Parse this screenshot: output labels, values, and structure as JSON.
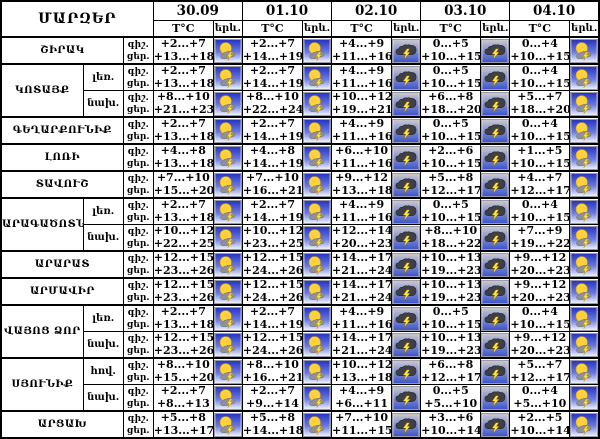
{
  "chart_data": {
    "type": "table",
    "title": "ՄԱՐԶԵՐ",
    "dates": [
      "30.09",
      "01.10",
      "02.10",
      "03.10",
      "04.10"
    ],
    "sub_headers": {
      "temperature": "T°C",
      "phenomena": "երև."
    },
    "period_labels": {
      "night": "գիշ.",
      "day": "ցեր."
    },
    "icon_legend": {
      "sun-cloud-lightning": "sun with cloud and lightning on blue sky",
      "thundercloud": "dark storm cloud with lightning"
    },
    "regions": [
      {
        "name": "ՇԻՐԱԿ",
        "zones": [
          {
            "label": "",
            "night": [
              "+2...+7",
              "+2...+7",
              "+4...+9",
              "0...+5",
              "0...+4"
            ],
            "day": [
              "+13...+18",
              "+14...+19",
              "+11...+16",
              "+10...+15",
              "+10...+15"
            ],
            "icons": [
              "sun-cloud-lightning",
              "sun-cloud-lightning",
              "thundercloud",
              "thundercloud",
              "sun-cloud-lightning"
            ]
          }
        ]
      },
      {
        "name": "ԿՈՏԱՅՔ",
        "zones": [
          {
            "label": "լեռ.",
            "night": [
              "+2...+7",
              "+2...+7",
              "+4...+9",
              "0...+5",
              "0...+4"
            ],
            "day": [
              "+13...+18",
              "+14...+19",
              "+11...+16",
              "+10...+15",
              "+10...+15"
            ],
            "icons": [
              "sun-cloud-lightning",
              "sun-cloud-lightning",
              "thundercloud",
              "thundercloud",
              "sun-cloud-lightning"
            ]
          },
          {
            "label": "նախ.",
            "night": [
              "+8...+10",
              "+8...+10",
              "+10...+12",
              "+6...+8",
              "+5...+7"
            ],
            "day": [
              "+21...+23",
              "+22...+24",
              "+19...+21",
              "+18...+20",
              "+18...+20"
            ],
            "icons": [
              "sun-cloud-lightning",
              "sun-cloud-lightning",
              "thundercloud",
              "thundercloud",
              "sun-cloud-lightning"
            ]
          }
        ]
      },
      {
        "name": "ԳԵՂԱՐՔՈՒՆԻՔ",
        "zones": [
          {
            "label": "",
            "night": [
              "+2...+7",
              "+2...+7",
              "+4...+9",
              "0...+5",
              "0...+4"
            ],
            "day": [
              "+13...+18",
              "+14...+19",
              "+11...+16",
              "+10...+15",
              "+10...+15"
            ],
            "icons": [
              "sun-cloud-lightning",
              "sun-cloud-lightning",
              "thundercloud",
              "thundercloud",
              "sun-cloud-lightning"
            ]
          }
        ]
      },
      {
        "name": "ԼՈՌԻ",
        "zones": [
          {
            "label": "",
            "night": [
              "+4...+8",
              "+4...+8",
              "+6...+10",
              "+2...+6",
              "+1...+5"
            ],
            "day": [
              "+13...+18",
              "+14...+19",
              "+11...+16",
              "+10...+15",
              "+10...+15"
            ],
            "icons": [
              "sun-cloud-lightning",
              "sun-cloud-lightning",
              "thundercloud",
              "thundercloud",
              "sun-cloud-lightning"
            ]
          }
        ]
      },
      {
        "name": "ՏԱՎՈՒՇ",
        "zones": [
          {
            "label": "",
            "night": [
              "+7...+10",
              "+7...+10",
              "+9...+12",
              "+5...+8",
              "+4...+7"
            ],
            "day": [
              "+15...+20",
              "+16...+21",
              "+13...+18",
              "+12...+17",
              "+12...+17"
            ],
            "icons": [
              "sun-cloud-lightning",
              "sun-cloud-lightning",
              "thundercloud",
              "thundercloud",
              "sun-cloud-lightning"
            ]
          }
        ]
      },
      {
        "name": "ԱՐԱԳԱԾՈՏՆ",
        "zones": [
          {
            "label": "լեռ.",
            "night": [
              "+2...+7",
              "+2...+7",
              "+4...+9",
              "0...+5",
              "0...+4"
            ],
            "day": [
              "+13...+18",
              "+14...+19",
              "+11...+16",
              "+10...+15",
              "+10...+15"
            ],
            "icons": [
              "sun-cloud-lightning",
              "sun-cloud-lightning",
              "thundercloud",
              "thundercloud",
              "sun-cloud-lightning"
            ]
          },
          {
            "label": "նախ.",
            "night": [
              "+10...+12",
              "+10...+12",
              "+12...+14",
              "+8...+10",
              "+7...+9"
            ],
            "day": [
              "+22...+25",
              "+23...+25",
              "+20...+23",
              "+18...+22",
              "+19...+22"
            ],
            "icons": [
              "sun-cloud-lightning",
              "sun-cloud-lightning",
              "thundercloud",
              "thundercloud",
              "sun-cloud-lightning"
            ]
          }
        ]
      },
      {
        "name": "ԱՐԱՐԱՏ",
        "zones": [
          {
            "label": "",
            "night": [
              "+12...+15",
              "+12...+15",
              "+14...+17",
              "+10...+13",
              "+9...+12"
            ],
            "day": [
              "+23...+26",
              "+24...+26",
              "+21...+24",
              "+19...+23",
              "+20...+23"
            ],
            "icons": [
              "sun-cloud-lightning",
              "sun-cloud-lightning",
              "thundercloud",
              "thundercloud",
              "sun-cloud-lightning"
            ]
          }
        ]
      },
      {
        "name": "ԱՐՄԱՎԻՐ",
        "zones": [
          {
            "label": "",
            "night": [
              "+12...+15",
              "+12...+15",
              "+14...+17",
              "+10...+13",
              "+9...+12"
            ],
            "day": [
              "+23...+26",
              "+24...+26",
              "+21...+24",
              "+19...+23",
              "+20...+23"
            ],
            "icons": [
              "sun-cloud-lightning",
              "sun-cloud-lightning",
              "thundercloud",
              "thundercloud",
              "sun-cloud-lightning"
            ]
          }
        ]
      },
      {
        "name": "ՎԱՅՈՑ ՁՈՐ",
        "zones": [
          {
            "label": "լեռ.",
            "night": [
              "+2...+7",
              "+2...+7",
              "+4...+9",
              "0...+5",
              "0...+4"
            ],
            "day": [
              "+13...+18",
              "+14...+19",
              "+11...+16",
              "+10...+15",
              "+10...+15"
            ],
            "icons": [
              "sun-cloud-lightning",
              "sun-cloud-lightning",
              "thundercloud",
              "thundercloud",
              "sun-cloud-lightning"
            ]
          },
          {
            "label": "նախ.",
            "night": [
              "+12...+15",
              "+12...+15",
              "+14...+17",
              "+10...+13",
              "+9...+12"
            ],
            "day": [
              "+23...+26",
              "+24...+26",
              "+21...+24",
              "+19...+23",
              "+20...+23"
            ],
            "icons": [
              "sun-cloud-lightning",
              "sun-cloud-lightning",
              "thundercloud",
              "thundercloud",
              "sun-cloud-lightning"
            ]
          }
        ]
      },
      {
        "name": "ՍՅՈՒՆԻՔ",
        "zones": [
          {
            "label": "հով.",
            "night": [
              "+8...+10",
              "+8...+10",
              "+10...+12",
              "+6...+8",
              "+5...+7"
            ],
            "day": [
              "+15...+20",
              "+16...+21",
              "+13...+18",
              "+12...+17",
              "+12...+17"
            ],
            "icons": [
              "sun-cloud-lightning",
              "sun-cloud-lightning",
              "thundercloud",
              "thundercloud",
              "sun-cloud-lightning"
            ]
          },
          {
            "label": "նախ.",
            "night": [
              "+2...+7",
              "+2...+7",
              "+4...+9",
              "0...+5",
              "0...+4"
            ],
            "day": [
              "+8...+13",
              "+9...+14",
              "+6...+11",
              "+5...+10",
              "+5...+10"
            ],
            "icons": [
              "sun-cloud-lightning",
              "sun-cloud-lightning",
              "thundercloud",
              "thundercloud",
              "sun-cloud-lightning"
            ]
          }
        ]
      },
      {
        "name": "ԱՐՑԱԽ",
        "zones": [
          {
            "label": "",
            "night": [
              "+5...+8",
              "+5...+8",
              "+7...+10",
              "+3...+6",
              "+2...+5"
            ],
            "day": [
              "+13...+17",
              "+14...+18",
              "+11...+15",
              "+10...+14",
              "+10...+14"
            ],
            "icons": [
              "sun-cloud-lightning",
              "sun-cloud-lightning",
              "thundercloud",
              "thundercloud",
              "sun-cloud-lightning"
            ]
          }
        ]
      }
    ]
  },
  "colors": {
    "border": "#000000",
    "text": "#000000",
    "sky_blue_top": "#2735c0",
    "sky_blue_bottom": "#eef1ff",
    "storm_gray_top": "#c8c8ce",
    "storm_blue_bottom": "#3d55cc",
    "sun_yellow": "#ffd23b",
    "bolt_yellow": "#ffe33d",
    "cloud_gray": "#909098",
    "cloud_dark": "#3f3f46"
  }
}
